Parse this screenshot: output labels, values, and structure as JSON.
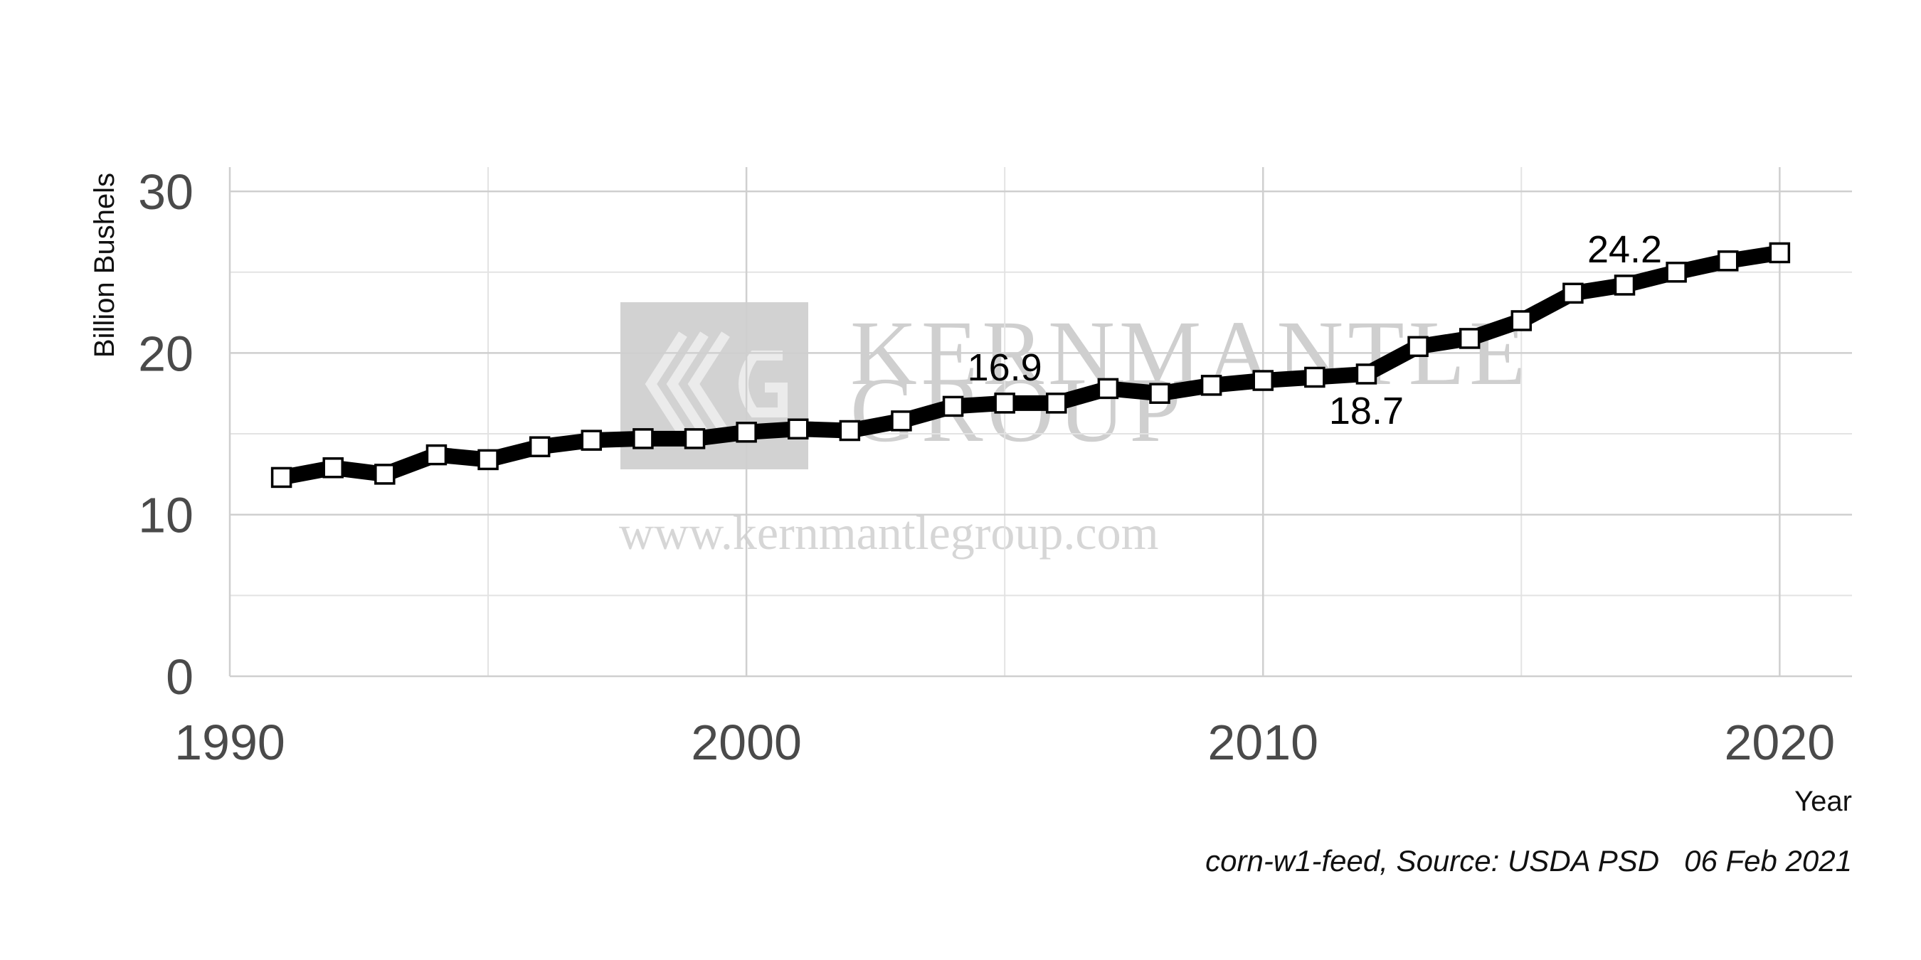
{
  "chart_data": {
    "type": "line",
    "title": "",
    "xlabel": "Year",
    "ylabel": "Billion Bushels",
    "xlim": [
      1990,
      2021.4
    ],
    "ylim": [
      0,
      31.5
    ],
    "x_ticks": [
      1990,
      2000,
      2010,
      2020
    ],
    "x_minor_ticks": [
      1995,
      2005,
      2015
    ],
    "y_ticks": [
      0,
      10,
      20,
      30
    ],
    "y_minor_ticks": [
      5,
      15,
      25
    ],
    "grid": true,
    "legend": "none",
    "series": [
      {
        "x": [
          1991,
          1992,
          1993,
          1994,
          1995,
          1996,
          1997,
          1998,
          1999,
          2000,
          2001,
          2002,
          2003,
          2004,
          2005,
          2006,
          2007,
          2008,
          2009,
          2010,
          2011,
          2012,
          2013,
          2014,
          2015,
          2016,
          2017,
          2018,
          2019,
          2020
        ],
        "values": [
          12.3,
          12.9,
          12.5,
          13.7,
          13.4,
          14.2,
          14.6,
          14.7,
          14.7,
          15.1,
          15.3,
          15.2,
          15.8,
          16.7,
          16.9,
          16.9,
          17.8,
          17.5,
          18.0,
          18.3,
          18.5,
          18.7,
          20.4,
          20.9,
          22.0,
          23.7,
          24.2,
          25.0,
          25.7,
          26.2
        ],
        "color": "#000000",
        "marker": "square"
      }
    ],
    "annotations": [
      {
        "x": 2005,
        "y": 16.9,
        "text": "16.9",
        "position": "above"
      },
      {
        "x": 2012,
        "y": 18.7,
        "text": "18.7",
        "position": "below"
      },
      {
        "x": 2017,
        "y": 24.2,
        "text": "24.2",
        "position": "above"
      }
    ]
  },
  "caption": "corn-w1-feed, Source: USDA PSD   06 Feb 2021",
  "watermark": {
    "name_line1": "KERNMANTLE",
    "name_line2": "GROUP",
    "url": "www.kernmantlegroup.com",
    "color": "#cfcfcf"
  }
}
